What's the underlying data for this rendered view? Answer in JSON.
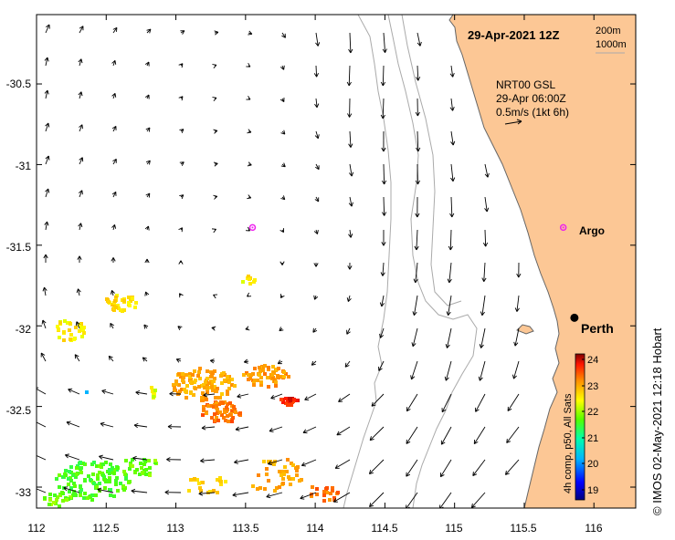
{
  "header": {
    "date_time": "29-Apr-2021 12Z",
    "isobath_200": "200m",
    "isobath_1000": "1000m"
  },
  "overlay": {
    "source": "NRT00 GSL",
    "analysis_time": "29-Apr 06:00Z",
    "scale_label": "0.5m/s (1kt 6h)"
  },
  "labels": {
    "argo": "Argo",
    "city": "Perth"
  },
  "colorbar": {
    "title": "4h comp, p50, All Sats",
    "ticks": [
      "24",
      "23",
      "22",
      "21",
      "20",
      "19"
    ],
    "min": 18.6,
    "max": 24.2
  },
  "credit": "© IMOS 02-May-2021 12:18 Hobart",
  "axes": {
    "x_ticks": [
      "112",
      "112.5",
      "113",
      "113.5",
      "114",
      "114.5",
      "115",
      "115.5",
      "116"
    ],
    "y_ticks": [
      "-30.5",
      "-31",
      "-31.5",
      "-32",
      "-32.5",
      "-33"
    ],
    "lon_range": [
      112,
      116.3
    ],
    "lat_range": [
      -33.13,
      -30.07
    ]
  },
  "markers": {
    "argo_floats": [
      {
        "lon": 113.55,
        "lat": -31.39
      },
      {
        "lon": 115.78,
        "lat": -31.39
      }
    ],
    "perth": {
      "lon": 115.86,
      "lat": -31.95
    }
  },
  "colors": {
    "land": "#fcc795",
    "coast": "#666666",
    "isobath": "#aaaaaa",
    "arrow": "#000000",
    "marker": "#ee22ee"
  }
}
